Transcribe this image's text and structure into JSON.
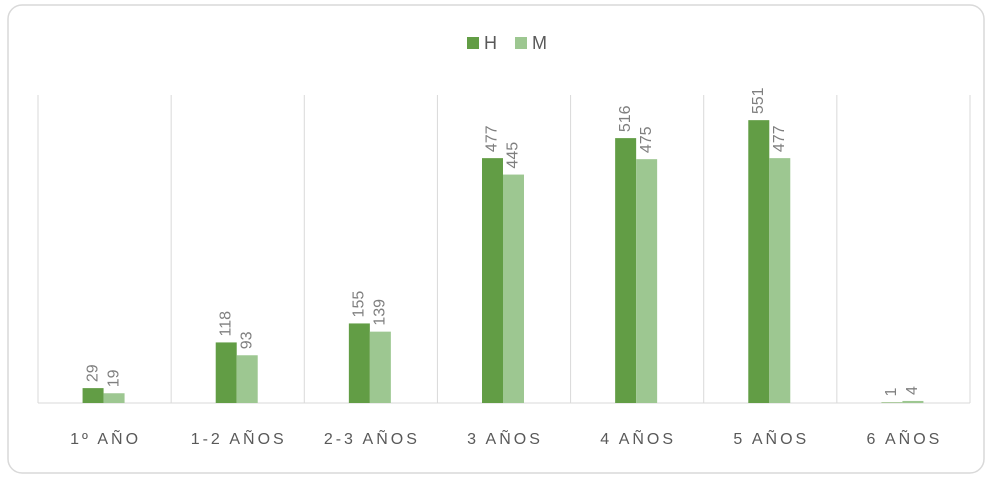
{
  "chart_data": {
    "type": "bar",
    "categories": [
      "1º AÑO",
      "1-2 AÑOS",
      "2-3 AÑOS",
      "3 AÑOS",
      "4 AÑOS",
      "5 AÑOS",
      "6 AÑOS"
    ],
    "series": [
      {
        "name": "H",
        "color": "#629d45",
        "values": [
          29,
          118,
          155,
          477,
          516,
          551,
          1
        ]
      },
      {
        "name": "M",
        "color": "#9dc791",
        "values": [
          19,
          93,
          139,
          445,
          475,
          477,
          4
        ]
      }
    ],
    "ylim": [
      0,
      600
    ],
    "legend": "top"
  }
}
